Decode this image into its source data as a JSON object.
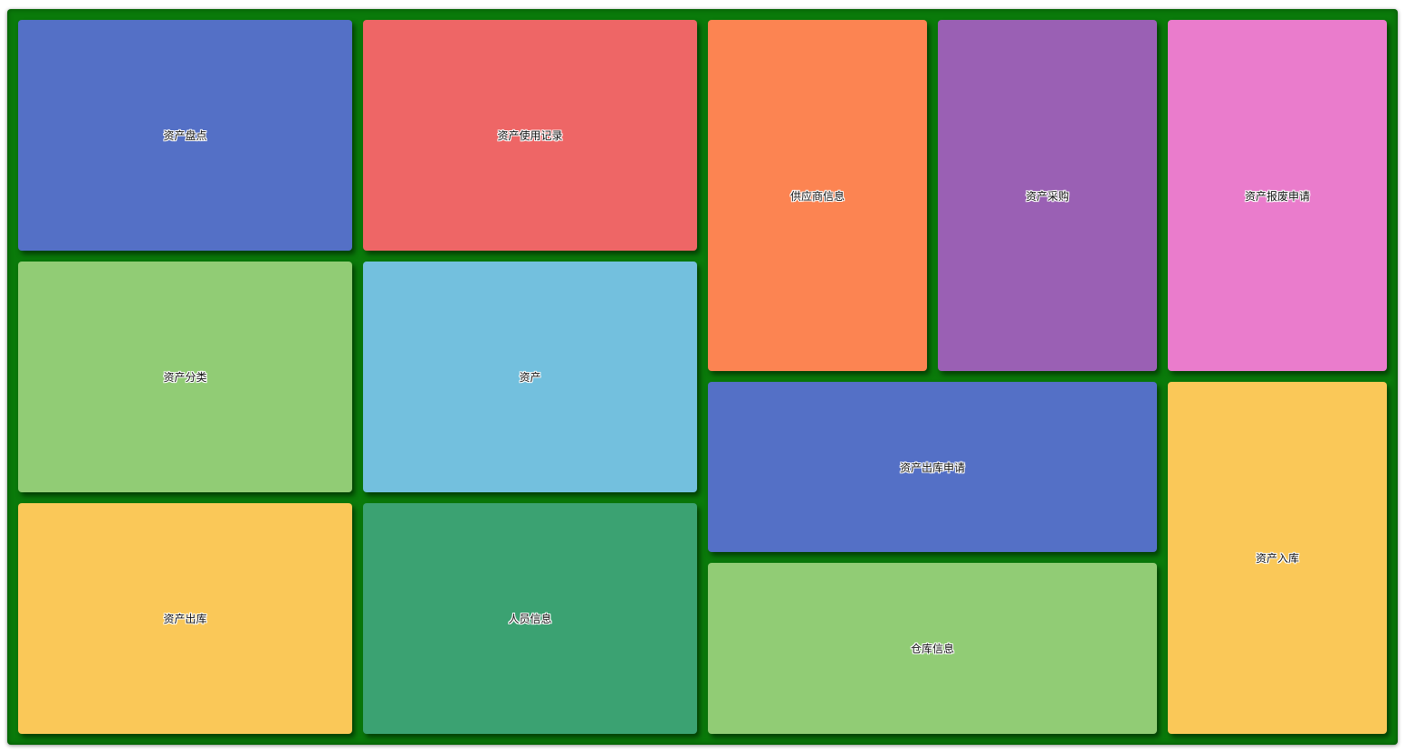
{
  "board": {
    "background": "#0a7a0a"
  },
  "tiles": [
    {
      "label": "资产盘点",
      "color": "#5470c6"
    },
    {
      "label": "资产使用记录",
      "color": "#ee6666"
    },
    {
      "label": "供应商信息",
      "color": "#fc8452"
    },
    {
      "label": "资产采购",
      "color": "#9a60b4"
    },
    {
      "label": "资产报废申请",
      "color": "#ea7ccc"
    },
    {
      "label": "资产分类",
      "color": "#91cc75"
    },
    {
      "label": "资产",
      "color": "#73c0de"
    },
    {
      "label": "资产出库申请",
      "color": "#5470c6"
    },
    {
      "label": "资产入库",
      "color": "#fac858"
    },
    {
      "label": "资产出库",
      "color": "#fac858"
    },
    {
      "label": "人员信息",
      "color": "#3ba272"
    },
    {
      "label": "仓库信息",
      "color": "#91cc75"
    }
  ]
}
